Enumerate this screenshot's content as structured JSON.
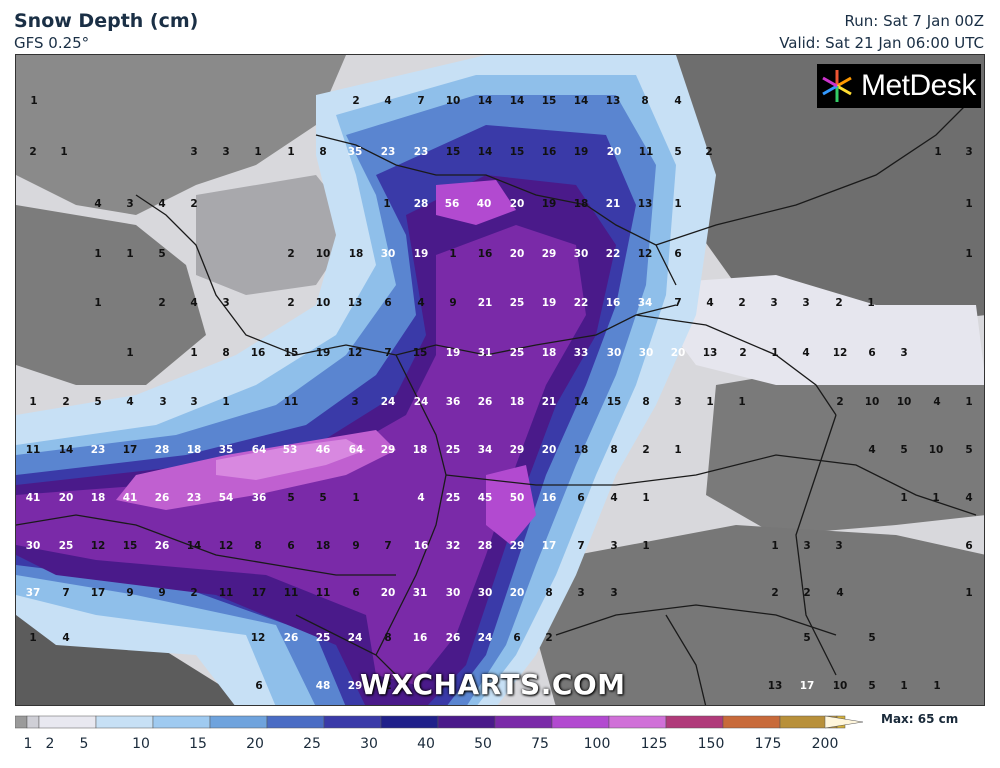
{
  "header": {
    "title": "Snow Depth (cm)",
    "model": "GFS 0.25°",
    "run": "Run: Sat 7 Jan 00Z",
    "valid": "Valid: Sat 21 Jan 06:00 UTC"
  },
  "branding": {
    "logo_text": "MetDesk",
    "watermark": "WXCHARTS.COM"
  },
  "legend": {
    "max_label": "Max: 65 cm",
    "ticks": [
      "1",
      "2",
      "5",
      "10",
      "15",
      "20",
      "25",
      "30",
      "40",
      "50",
      "75",
      "100",
      "125",
      "150",
      "175",
      "200"
    ],
    "colors": [
      "#9a9a9a",
      "#cfcfd6",
      "#e8e8f0",
      "#c7e0f5",
      "#9fcaf0",
      "#6fa3dd",
      "#4a6cc4",
      "#3a3aa8",
      "#20208a",
      "#4a1a8a",
      "#7a2aa8",
      "#b24ad0",
      "#d070d8",
      "#b03a7a",
      "#c86a3a",
      "#b8903a",
      "#d4b03a",
      "#e0c060",
      "#f0dca0"
    ]
  },
  "map_values": [
    {
      "v": "1",
      "c": "d"
    },
    {
      "v": "2",
      "c": "d"
    },
    {
      "v": "4",
      "c": "d"
    },
    {
      "v": "7",
      "c": "d"
    },
    {
      "v": "10",
      "c": "d"
    },
    {
      "v": "14",
      "c": "d"
    },
    {
      "v": "14",
      "c": "d"
    },
    {
      "v": "15",
      "c": "d"
    },
    {
      "v": "14",
      "c": "d"
    },
    {
      "v": "13",
      "c": "d"
    },
    {
      "v": "8",
      "c": "d"
    },
    {
      "v": "4",
      "c": "d"
    },
    {
      "v": "2",
      "c": "d"
    },
    {
      "v": "1",
      "c": "d"
    },
    {
      "v": "3",
      "c": "d"
    },
    {
      "v": "3",
      "c": "d"
    },
    {
      "v": "1",
      "c": "d"
    },
    {
      "v": "1",
      "c": "d"
    },
    {
      "v": "8",
      "c": "d"
    },
    {
      "v": "35",
      "c": "w"
    },
    {
      "v": "23",
      "c": "w"
    },
    {
      "v": "23",
      "c": "w"
    },
    {
      "v": "15",
      "c": "d"
    },
    {
      "v": "14",
      "c": "d"
    },
    {
      "v": "15",
      "c": "d"
    },
    {
      "v": "16",
      "c": "d"
    },
    {
      "v": "19",
      "c": "d"
    },
    {
      "v": "20",
      "c": "w"
    },
    {
      "v": "11",
      "c": "d"
    },
    {
      "v": "5",
      "c": "d"
    },
    {
      "v": "2",
      "c": "d"
    },
    {
      "v": "1",
      "c": "d"
    },
    {
      "v": "3",
      "c": "d"
    },
    {
      "v": "4",
      "c": "d"
    },
    {
      "v": "3",
      "c": "d"
    },
    {
      "v": "4",
      "c": "d"
    },
    {
      "v": "2",
      "c": "d"
    },
    {
      "v": "1",
      "c": "d"
    },
    {
      "v": "28",
      "c": "w"
    },
    {
      "v": "56",
      "c": "w"
    },
    {
      "v": "40",
      "c": "w"
    },
    {
      "v": "20",
      "c": "w"
    },
    {
      "v": "19",
      "c": "d"
    },
    {
      "v": "18",
      "c": "d"
    },
    {
      "v": "21",
      "c": "w"
    },
    {
      "v": "13",
      "c": "d"
    },
    {
      "v": "1",
      "c": "d"
    },
    {
      "v": "1",
      "c": "d"
    },
    {
      "v": "1",
      "c": "d"
    },
    {
      "v": "1",
      "c": "d"
    },
    {
      "v": "5",
      "c": "d"
    },
    {
      "v": "2",
      "c": "d"
    },
    {
      "v": "10",
      "c": "d"
    },
    {
      "v": "18",
      "c": "d"
    },
    {
      "v": "30",
      "c": "w"
    },
    {
      "v": "19",
      "c": "w"
    },
    {
      "v": "1",
      "c": "d"
    },
    {
      "v": "16",
      "c": "d"
    },
    {
      "v": "20",
      "c": "w"
    },
    {
      "v": "29",
      "c": "w"
    },
    {
      "v": "30",
      "c": "w"
    },
    {
      "v": "22",
      "c": "w"
    },
    {
      "v": "12",
      "c": "d"
    },
    {
      "v": "6",
      "c": "d"
    },
    {
      "v": "1",
      "c": "d"
    },
    {
      "v": "1",
      "c": "d"
    },
    {
      "v": "2",
      "c": "d"
    },
    {
      "v": "4",
      "c": "d"
    },
    {
      "v": "3",
      "c": "d"
    },
    {
      "v": "2",
      "c": "d"
    },
    {
      "v": "10",
      "c": "d"
    },
    {
      "v": "13",
      "c": "d"
    },
    {
      "v": "6",
      "c": "d"
    },
    {
      "v": "4",
      "c": "d"
    },
    {
      "v": "9",
      "c": "d"
    },
    {
      "v": "21",
      "c": "w"
    },
    {
      "v": "25",
      "c": "w"
    },
    {
      "v": "19",
      "c": "w"
    },
    {
      "v": "22",
      "c": "w"
    },
    {
      "v": "16",
      "c": "w"
    },
    {
      "v": "34",
      "c": "w"
    },
    {
      "v": "7",
      "c": "d"
    },
    {
      "v": "4",
      "c": "d"
    },
    {
      "v": "2",
      "c": "d"
    },
    {
      "v": "3",
      "c": "d"
    },
    {
      "v": "3",
      "c": "d"
    },
    {
      "v": "2",
      "c": "d"
    },
    {
      "v": "1",
      "c": "d"
    },
    {
      "v": "1",
      "c": "d"
    },
    {
      "v": "1",
      "c": "d"
    },
    {
      "v": "8",
      "c": "d"
    },
    {
      "v": "16",
      "c": "d"
    },
    {
      "v": "15",
      "c": "d"
    },
    {
      "v": "19",
      "c": "d"
    },
    {
      "v": "12",
      "c": "d"
    },
    {
      "v": "7",
      "c": "d"
    },
    {
      "v": "15",
      "c": "d"
    },
    {
      "v": "19",
      "c": "w"
    },
    {
      "v": "31",
      "c": "w"
    },
    {
      "v": "25",
      "c": "w"
    },
    {
      "v": "18",
      "c": "w"
    },
    {
      "v": "33",
      "c": "w"
    },
    {
      "v": "30",
      "c": "w"
    },
    {
      "v": "30",
      "c": "w"
    },
    {
      "v": "20",
      "c": "w"
    },
    {
      "v": "13",
      "c": "d"
    },
    {
      "v": "2",
      "c": "d"
    },
    {
      "v": "1",
      "c": "d"
    },
    {
      "v": "4",
      "c": "d"
    },
    {
      "v": "12",
      "c": "d"
    },
    {
      "v": "6",
      "c": "d"
    },
    {
      "v": "3",
      "c": "d"
    },
    {
      "v": "1",
      "c": "d"
    },
    {
      "v": "2",
      "c": "d"
    },
    {
      "v": "5",
      "c": "d"
    },
    {
      "v": "4",
      "c": "d"
    },
    {
      "v": "3",
      "c": "d"
    },
    {
      "v": "3",
      "c": "d"
    },
    {
      "v": "1",
      "c": "d"
    },
    {
      "v": "11",
      "c": "d"
    },
    {
      "v": "3",
      "c": "d"
    },
    {
      "v": "24",
      "c": "w"
    },
    {
      "v": "24",
      "c": "w"
    },
    {
      "v": "36",
      "c": "w"
    },
    {
      "v": "26",
      "c": "w"
    },
    {
      "v": "18",
      "c": "w"
    },
    {
      "v": "21",
      "c": "w"
    },
    {
      "v": "14",
      "c": "d"
    },
    {
      "v": "15",
      "c": "d"
    },
    {
      "v": "8",
      "c": "d"
    },
    {
      "v": "3",
      "c": "d"
    },
    {
      "v": "1",
      "c": "d"
    },
    {
      "v": "1",
      "c": "d"
    },
    {
      "v": "2",
      "c": "d"
    },
    {
      "v": "10",
      "c": "d"
    },
    {
      "v": "10",
      "c": "d"
    },
    {
      "v": "4",
      "c": "d"
    },
    {
      "v": "1",
      "c": "d"
    },
    {
      "v": "11",
      "c": "d"
    },
    {
      "v": "14",
      "c": "d"
    },
    {
      "v": "23",
      "c": "w"
    },
    {
      "v": "17",
      "c": "d"
    },
    {
      "v": "28",
      "c": "w"
    },
    {
      "v": "18",
      "c": "w"
    },
    {
      "v": "35",
      "c": "w"
    },
    {
      "v": "64",
      "c": "w"
    },
    {
      "v": "53",
      "c": "w"
    },
    {
      "v": "46",
      "c": "w"
    },
    {
      "v": "64",
      "c": "w"
    },
    {
      "v": "29",
      "c": "w"
    },
    {
      "v": "18",
      "c": "w"
    },
    {
      "v": "25",
      "c": "w"
    },
    {
      "v": "34",
      "c": "w"
    },
    {
      "v": "29",
      "c": "w"
    },
    {
      "v": "20",
      "c": "w"
    },
    {
      "v": "18",
      "c": "d"
    },
    {
      "v": "8",
      "c": "d"
    },
    {
      "v": "2",
      "c": "d"
    },
    {
      "v": "1",
      "c": "d"
    },
    {
      "v": "4",
      "c": "d"
    },
    {
      "v": "5",
      "c": "d"
    },
    {
      "v": "10",
      "c": "d"
    },
    {
      "v": "5",
      "c": "d"
    },
    {
      "v": "41",
      "c": "w"
    },
    {
      "v": "20",
      "c": "w"
    },
    {
      "v": "18",
      "c": "w"
    },
    {
      "v": "41",
      "c": "w"
    },
    {
      "v": "26",
      "c": "w"
    },
    {
      "v": "23",
      "c": "w"
    },
    {
      "v": "54",
      "c": "w"
    },
    {
      "v": "36",
      "c": "w"
    },
    {
      "v": "5",
      "c": "d"
    },
    {
      "v": "5",
      "c": "d"
    },
    {
      "v": "1",
      "c": "d"
    },
    {
      "v": "4",
      "c": "w"
    },
    {
      "v": "25",
      "c": "w"
    },
    {
      "v": "45",
      "c": "w"
    },
    {
      "v": "50",
      "c": "w"
    },
    {
      "v": "16",
      "c": "w"
    },
    {
      "v": "6",
      "c": "d"
    },
    {
      "v": "4",
      "c": "d"
    },
    {
      "v": "1",
      "c": "d"
    },
    {
      "v": "1",
      "c": "d"
    },
    {
      "v": "1",
      "c": "d"
    },
    {
      "v": "4",
      "c": "d"
    },
    {
      "v": "30",
      "c": "w"
    },
    {
      "v": "25",
      "c": "w"
    },
    {
      "v": "12",
      "c": "d"
    },
    {
      "v": "15",
      "c": "d"
    },
    {
      "v": "26",
      "c": "w"
    },
    {
      "v": "14",
      "c": "d"
    },
    {
      "v": "12",
      "c": "d"
    },
    {
      "v": "8",
      "c": "d"
    },
    {
      "v": "6",
      "c": "d"
    },
    {
      "v": "18",
      "c": "d"
    },
    {
      "v": "9",
      "c": "d"
    },
    {
      "v": "7",
      "c": "d"
    },
    {
      "v": "16",
      "c": "w"
    },
    {
      "v": "32",
      "c": "w"
    },
    {
      "v": "28",
      "c": "w"
    },
    {
      "v": "29",
      "c": "w"
    },
    {
      "v": "17",
      "c": "w"
    },
    {
      "v": "7",
      "c": "d"
    },
    {
      "v": "3",
      "c": "d"
    },
    {
      "v": "1",
      "c": "d"
    },
    {
      "v": "1",
      "c": "d"
    },
    {
      "v": "3",
      "c": "d"
    },
    {
      "v": "3",
      "c": "d"
    },
    {
      "v": "6",
      "c": "d"
    },
    {
      "v": "37",
      "c": "w"
    },
    {
      "v": "7",
      "c": "d"
    },
    {
      "v": "17",
      "c": "d"
    },
    {
      "v": "9",
      "c": "d"
    },
    {
      "v": "9",
      "c": "d"
    },
    {
      "v": "2",
      "c": "d"
    },
    {
      "v": "11",
      "c": "d"
    },
    {
      "v": "17",
      "c": "d"
    },
    {
      "v": "11",
      "c": "d"
    },
    {
      "v": "11",
      "c": "d"
    },
    {
      "v": "6",
      "c": "d"
    },
    {
      "v": "20",
      "c": "w"
    },
    {
      "v": "31",
      "c": "w"
    },
    {
      "v": "30",
      "c": "w"
    },
    {
      "v": "30",
      "c": "w"
    },
    {
      "v": "20",
      "c": "w"
    },
    {
      "v": "8",
      "c": "d"
    },
    {
      "v": "3",
      "c": "d"
    },
    {
      "v": "3",
      "c": "d"
    },
    {
      "v": "2",
      "c": "d"
    },
    {
      "v": "2",
      "c": "d"
    },
    {
      "v": "4",
      "c": "d"
    },
    {
      "v": "1",
      "c": "d"
    },
    {
      "v": "1",
      "c": "d"
    },
    {
      "v": "4",
      "c": "d"
    },
    {
      "v": "12",
      "c": "d"
    },
    {
      "v": "26",
      "c": "w"
    },
    {
      "v": "25",
      "c": "w"
    },
    {
      "v": "24",
      "c": "w"
    },
    {
      "v": "8",
      "c": "d"
    },
    {
      "v": "16",
      "c": "w"
    },
    {
      "v": "26",
      "c": "w"
    },
    {
      "v": "24",
      "c": "w"
    },
    {
      "v": "6",
      "c": "d"
    },
    {
      "v": "2",
      "c": "d"
    },
    {
      "v": "5",
      "c": "d"
    },
    {
      "v": "5",
      "c": "d"
    },
    {
      "v": "6",
      "c": "d"
    },
    {
      "v": "48",
      "c": "w"
    },
    {
      "v": "29",
      "c": "w"
    },
    {
      "v": "2",
      "c": "d"
    },
    {
      "v": "13",
      "c": "d"
    },
    {
      "v": "17",
      "c": "w"
    },
    {
      "v": "10",
      "c": "d"
    },
    {
      "v": "5",
      "c": "d"
    },
    {
      "v": "1",
      "c": "d"
    },
    {
      "v": "1",
      "c": "d"
    }
  ]
}
